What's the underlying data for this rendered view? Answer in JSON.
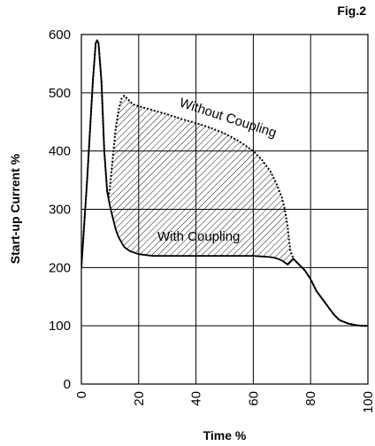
{
  "figure_label": "Fig.2",
  "chart_data": {
    "type": "line",
    "title": "",
    "xlabel": "Time %",
    "ylabel": "Start-up Current %",
    "xlim": [
      0,
      100
    ],
    "ylim": [
      0,
      600
    ],
    "x_ticks": [
      "0",
      "20",
      "40",
      "60",
      "80",
      "100"
    ],
    "y_ticks": [
      "0",
      "100",
      "200",
      "300",
      "400",
      "500",
      "600"
    ],
    "grid": true,
    "series": [
      {
        "name": "Without Coupling",
        "x": [
          0,
          2,
          4,
          5,
          5.5,
          6,
          7,
          8,
          9,
          9.5,
          10,
          11,
          12,
          13,
          13.5,
          14,
          15,
          16,
          18,
          20,
          25,
          30,
          35,
          40,
          45,
          50,
          55,
          60,
          63,
          66,
          68,
          70,
          71,
          72,
          72.5,
          73,
          74,
          75,
          78,
          80,
          82,
          85,
          88,
          90,
          93,
          96,
          98,
          100
        ],
        "y": [
          200,
          350,
          520,
          585,
          590,
          585,
          520,
          400,
          330,
          320,
          340,
          390,
          440,
          470,
          480,
          490,
          495,
          490,
          480,
          477,
          470,
          463,
          455,
          448,
          440,
          430,
          417,
          400,
          385,
          365,
          345,
          320,
          300,
          270,
          245,
          228,
          215,
          210,
          195,
          180,
          160,
          140,
          120,
          110,
          104,
          101,
          100,
          100
        ]
      },
      {
        "name": "With Coupling",
        "x": [
          0,
          2,
          4,
          5,
          5.5,
          6,
          7,
          8,
          9,
          10,
          11,
          12,
          13,
          14,
          15,
          17,
          20,
          25,
          30,
          35,
          40,
          45,
          50,
          55,
          60,
          63,
          66,
          68,
          70,
          72,
          74,
          75,
          78,
          80,
          82,
          85,
          88,
          90,
          93,
          96,
          98,
          100
        ],
        "y": [
          200,
          350,
          520,
          585,
          590,
          585,
          520,
          400,
          330,
          305,
          285,
          265,
          252,
          243,
          235,
          228,
          223,
          220,
          220,
          220,
          220,
          220,
          220,
          220,
          220,
          219,
          218,
          216,
          212,
          205,
          215,
          210,
          195,
          180,
          160,
          140,
          120,
          110,
          104,
          101,
          100,
          100
        ]
      }
    ],
    "shaded_region": "between Without Coupling and With Coupling",
    "annotations": [
      "Without Coupling",
      "With Coupling"
    ]
  }
}
